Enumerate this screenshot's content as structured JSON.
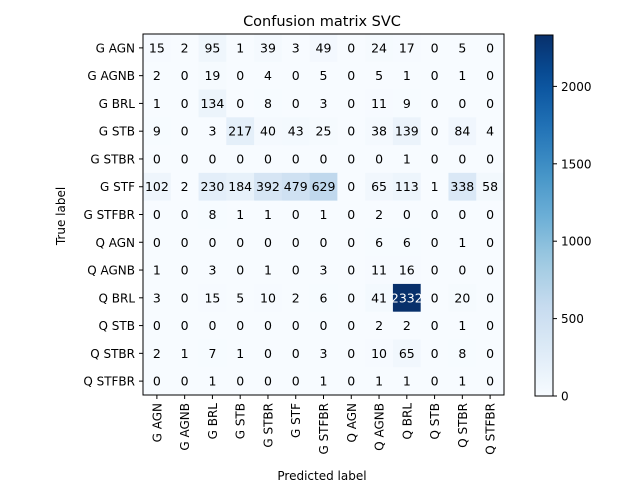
{
  "chart_data": {
    "type": "heatmap",
    "title": "Confusion matrix SVC",
    "xlabel": "Predicted label",
    "ylabel": "True label",
    "labels": [
      "G AGN",
      "G AGNB",
      "G BRL",
      "G STB",
      "G STBR",
      "G STF",
      "G STFBR",
      "Q AGN",
      "Q AGNB",
      "Q BRL",
      "Q STB",
      "Q STBR",
      "Q STFBR"
    ],
    "matrix": [
      [
        15,
        2,
        95,
        1,
        39,
        3,
        49,
        0,
        24,
        17,
        0,
        5,
        0
      ],
      [
        2,
        0,
        19,
        0,
        4,
        0,
        5,
        0,
        5,
        1,
        0,
        1,
        0
      ],
      [
        1,
        0,
        134,
        0,
        8,
        0,
        3,
        0,
        11,
        9,
        0,
        0,
        0
      ],
      [
        9,
        0,
        3,
        217,
        40,
        43,
        25,
        0,
        38,
        139,
        0,
        84,
        4
      ],
      [
        0,
        0,
        0,
        0,
        0,
        0,
        0,
        0,
        0,
        1,
        0,
        0,
        0
      ],
      [
        102,
        2,
        230,
        184,
        392,
        479,
        629,
        0,
        65,
        113,
        1,
        338,
        58
      ],
      [
        0,
        0,
        8,
        1,
        1,
        0,
        1,
        0,
        2,
        0,
        0,
        0,
        0
      ],
      [
        0,
        0,
        0,
        0,
        0,
        0,
        0,
        0,
        6,
        6,
        0,
        1,
        0
      ],
      [
        1,
        0,
        3,
        0,
        1,
        0,
        3,
        0,
        11,
        16,
        0,
        0,
        0
      ],
      [
        3,
        0,
        15,
        5,
        10,
        2,
        6,
        0,
        41,
        2332,
        0,
        20,
        0
      ],
      [
        0,
        0,
        0,
        0,
        0,
        0,
        0,
        0,
        2,
        2,
        0,
        1,
        0
      ],
      [
        2,
        1,
        7,
        1,
        0,
        0,
        3,
        0,
        10,
        65,
        0,
        8,
        0
      ],
      [
        0,
        0,
        1,
        0,
        0,
        0,
        1,
        0,
        1,
        1,
        0,
        1,
        0
      ]
    ],
    "colorscale": "Blues",
    "vmin": 0,
    "vmax": 2332,
    "colorbar_ticks": [
      0,
      500,
      1000,
      1500,
      2000
    ],
    "grid": false
  }
}
